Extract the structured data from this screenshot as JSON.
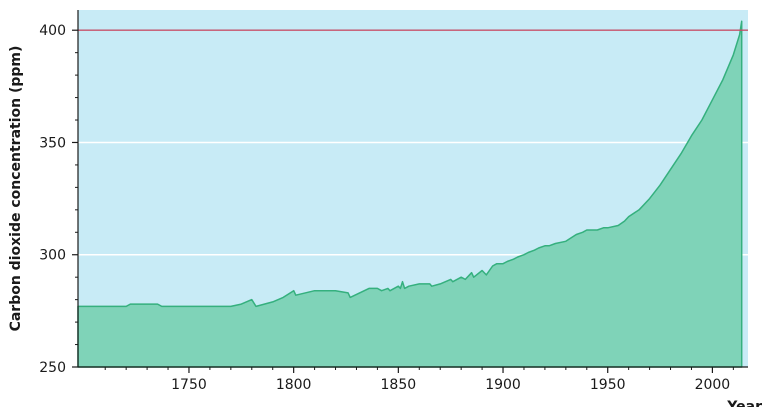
{
  "chart_data": {
    "type": "area",
    "title": "",
    "xlabel": "Year",
    "ylabel": "Carbon dioxide concentration (ppm)",
    "xlim": [
      1697,
      2017
    ],
    "ylim": [
      250,
      409
    ],
    "x_ticks": [
      1750,
      1800,
      1850,
      1900,
      1950,
      2000
    ],
    "y_ticks": [
      250,
      300,
      350,
      400
    ],
    "reference_line": {
      "y": 400,
      "color": "#c0506a"
    },
    "grid": "horizontal",
    "colors": {
      "plot_background": "#c8ebf6",
      "area_fill": "#7fd3b8",
      "area_edge": "#35b07e",
      "gridline": "#ffffff"
    },
    "series": [
      {
        "x": [
          1697,
          1720,
          1722,
          1730,
          1735,
          1737,
          1750,
          1760,
          1770,
          1775,
          1780,
          1782,
          1790,
          1795,
          1800,
          1801,
          1810,
          1820,
          1826,
          1827,
          1836,
          1840,
          1842,
          1845,
          1846,
          1850,
          1851,
          1852,
          1853,
          1855,
          1860,
          1865,
          1866,
          1870,
          1875,
          1876,
          1880,
          1882,
          1885,
          1886,
          1890,
          1892,
          1895,
          1897,
          1900,
          1902,
          1905,
          1907,
          1910,
          1912,
          1915,
          1917,
          1920,
          1922,
          1925,
          1930,
          1935,
          1938,
          1940,
          1945,
          1948,
          1950,
          1955,
          1958,
          1960,
          1965,
          1970,
          1975,
          1980,
          1985,
          1990,
          1995,
          2000,
          2005,
          2010,
          2013,
          2014
        ],
        "values": [
          277,
          277,
          278,
          278,
          278,
          277,
          277,
          277,
          277,
          278,
          280,
          277,
          279,
          281,
          284,
          282,
          284,
          284,
          283,
          281,
          285,
          285,
          284,
          285,
          284,
          286,
          285,
          288,
          285,
          286,
          287,
          287,
          286,
          287,
          289,
          288,
          290,
          289,
          292,
          290,
          293,
          291,
          295,
          296,
          296,
          297,
          298,
          299,
          300,
          301,
          302,
          303,
          304,
          304,
          305,
          306,
          309,
          310,
          311,
          311,
          312,
          312,
          313,
          315,
          317,
          320,
          325,
          331,
          338,
          345,
          353,
          360,
          369,
          378,
          389,
          398,
          404
        ]
      }
    ]
  }
}
